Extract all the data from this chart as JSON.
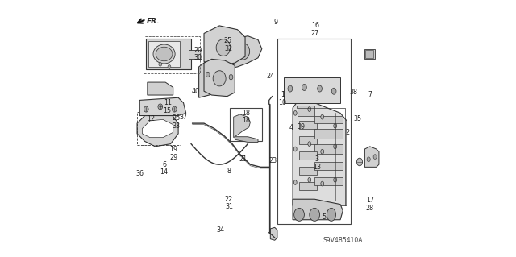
{
  "title": "",
  "background_color": "#ffffff",
  "diagram_code": "S9V4B5410A",
  "fr_label": "FR.",
  "line_color": "#333333",
  "text_color": "#222222",
  "box_color": "#555555",
  "part_color": "#888888",
  "light_part_color": "#aaaaaa"
}
